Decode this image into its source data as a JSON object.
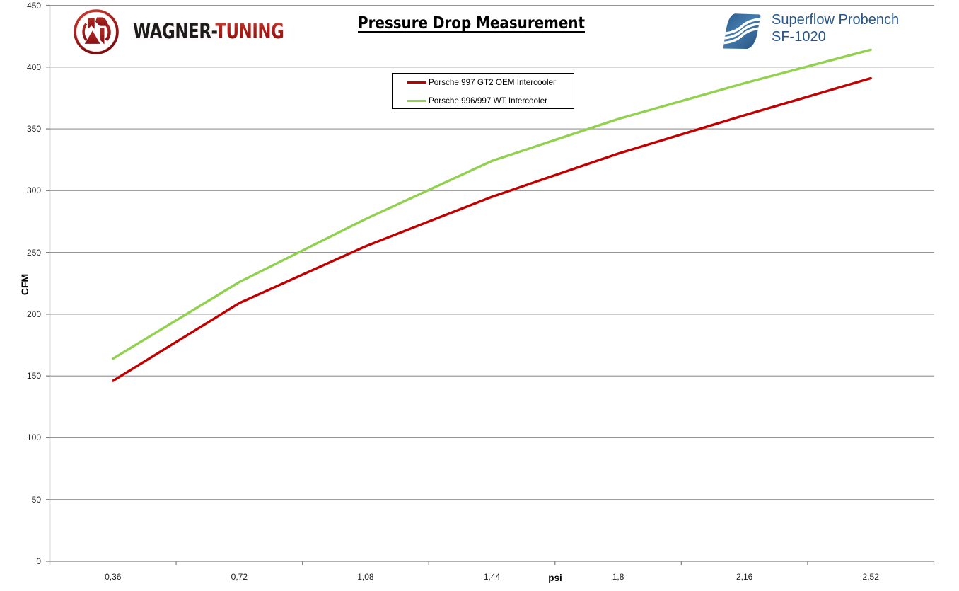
{
  "page": {
    "background": "#FFFFFF"
  },
  "header": {
    "wagner_logo": {
      "monogram": "WT",
      "text_black": "WAGNER-",
      "text_red": "TUNING"
    },
    "title": "Pressure Drop Measurement",
    "superflow": {
      "line1": "Superflow Probench",
      "line2": "SF-1020",
      "text_color": "#27568A"
    }
  },
  "chart_data": {
    "type": "line",
    "title": "Pressure Drop Measurement",
    "xlabel": "psi",
    "ylabel": "CFM",
    "categories": [
      "0,36",
      "0,72",
      "1,08",
      "1,44",
      "1,8",
      "2,16",
      "2,52"
    ],
    "series": [
      {
        "name": "Porsche 997 GT2 OEM Intercooler",
        "color": "#C00000",
        "values": [
          146,
          209,
          255,
          295,
          330,
          361,
          391
        ]
      },
      {
        "name": "Porsche 996/997 WT Intercooler",
        "color": "#92D050",
        "values": [
          164,
          226,
          277,
          324,
          358,
          387,
          414
        ]
      }
    ],
    "ylim": [
      0,
      450
    ],
    "ytick_step": 50,
    "grid": true,
    "legend_position": "top-center",
    "legend_border": "#000000"
  },
  "colors": {
    "gridline": "#949494",
    "axis": "#7F7F7F",
    "tick_label": "#1C1C1C",
    "background": "#FFFFFF"
  }
}
